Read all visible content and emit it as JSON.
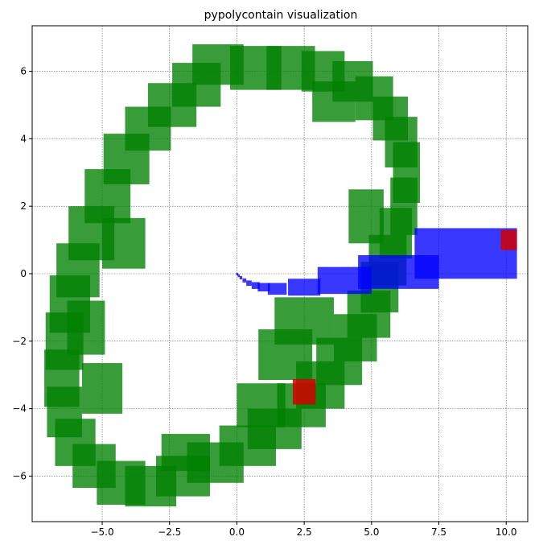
{
  "chart_data": {
    "type": "scatter",
    "title": "pypolycontain visualization",
    "xlabel": "",
    "ylabel": "",
    "xlim": [
      -7.6,
      10.8
    ],
    "ylim": [
      -7.35,
      7.35
    ],
    "xticks": [
      -5.0,
      -2.5,
      0.0,
      2.5,
      5.0,
      7.5,
      10.0
    ],
    "xtick_labels": [
      "−5.0",
      "−2.5",
      "0.0",
      "2.5",
      "5.0",
      "7.5",
      "10.0"
    ],
    "yticks": [
      -6,
      -4,
      -2,
      0,
      2,
      4,
      6
    ],
    "ytick_labels": [
      "−6",
      "−4",
      "−2",
      "0",
      "2",
      "4",
      "6"
    ],
    "grid": true,
    "colors": {
      "green": "#008000",
      "blue": "#0000ff",
      "red": "#d40000",
      "grid": "#555555"
    },
    "series": [
      {
        "color": "green",
        "opacity": 0.78,
        "boxes": [
          [
            -0.7,
            6.2,
            1.9,
            1.2
          ],
          [
            0.7,
            6.1,
            1.9,
            1.3
          ],
          [
            2.0,
            6.1,
            1.8,
            1.3
          ],
          [
            3.2,
            6.0,
            1.6,
            1.2
          ],
          [
            4.3,
            5.7,
            1.5,
            1.2
          ],
          [
            5.1,
            5.2,
            1.4,
            1.3
          ],
          [
            5.7,
            4.6,
            1.3,
            1.3
          ],
          [
            6.1,
            3.9,
            1.2,
            1.5
          ],
          [
            6.3,
            3.0,
            1.0,
            1.8
          ],
          [
            6.2,
            2.0,
            1.0,
            1.7
          ],
          [
            5.9,
            1.2,
            1.2,
            1.5
          ],
          [
            5.6,
            0.4,
            1.4,
            1.5
          ],
          [
            5.3,
            -0.4,
            1.4,
            1.5
          ],
          [
            4.9,
            -1.2,
            1.6,
            1.4
          ],
          [
            4.4,
            -1.9,
            1.6,
            1.4
          ],
          [
            3.8,
            -2.6,
            1.7,
            1.4
          ],
          [
            3.1,
            -3.3,
            1.8,
            1.4
          ],
          [
            2.4,
            -3.9,
            1.8,
            1.3
          ],
          [
            1.4,
            -4.6,
            2.0,
            1.2
          ],
          [
            0.4,
            -5.1,
            2.1,
            1.2
          ],
          [
            -0.8,
            -5.6,
            2.1,
            1.2
          ],
          [
            -2.0,
            -6.0,
            2.0,
            1.2
          ],
          [
            -3.2,
            -6.3,
            1.9,
            1.2
          ],
          [
            -4.3,
            -6.2,
            1.8,
            1.3
          ],
          [
            -5.3,
            -5.7,
            1.6,
            1.3
          ],
          [
            -6.0,
            -5.0,
            1.5,
            1.4
          ],
          [
            -6.4,
            -4.1,
            1.3,
            1.5
          ],
          [
            -6.5,
            -3.1,
            1.3,
            1.7
          ],
          [
            -6.4,
            -2.0,
            1.4,
            1.7
          ],
          [
            -6.2,
            -0.9,
            1.5,
            1.7
          ],
          [
            -5.9,
            0.1,
            1.6,
            1.6
          ],
          [
            -5.4,
            1.2,
            1.7,
            1.6
          ],
          [
            -4.8,
            2.3,
            1.7,
            1.6
          ],
          [
            -4.1,
            3.4,
            1.7,
            1.5
          ],
          [
            -3.3,
            4.3,
            1.7,
            1.3
          ],
          [
            -2.4,
            5.0,
            1.8,
            1.3
          ],
          [
            -1.5,
            5.6,
            1.8,
            1.3
          ],
          [
            2.5,
            -1.4,
            2.2,
            1.4
          ],
          [
            1.8,
            -2.4,
            2.0,
            1.5
          ],
          [
            -5.6,
            -1.6,
            1.4,
            1.6
          ],
          [
            -5.0,
            -3.4,
            1.5,
            1.5
          ],
          [
            -4.2,
            0.9,
            1.6,
            1.5
          ],
          [
            4.8,
            1.7,
            1.3,
            1.6
          ],
          [
            3.6,
            5.1,
            1.6,
            1.2
          ],
          [
            -1.9,
            -5.3,
            1.8,
            1.1
          ],
          [
            0.9,
            -3.9,
            1.8,
            1.3
          ]
        ]
      },
      {
        "color": "blue",
        "opacity": 0.78,
        "boxes": [
          [
            8.5,
            0.6,
            3.8,
            1.5
          ],
          [
            6.0,
            0.05,
            3.0,
            1.0
          ],
          [
            4.0,
            -0.2,
            2.0,
            0.8
          ],
          [
            2.5,
            -0.4,
            1.2,
            0.5
          ],
          [
            1.5,
            -0.45,
            0.7,
            0.35
          ],
          [
            1.0,
            -0.4,
            0.45,
            0.25
          ],
          [
            0.7,
            -0.35,
            0.3,
            0.2
          ],
          [
            0.45,
            -0.28,
            0.2,
            0.16
          ],
          [
            0.28,
            -0.2,
            0.14,
            0.12
          ],
          [
            0.15,
            -0.12,
            0.1,
            0.1
          ],
          [
            0.07,
            -0.06,
            0.08,
            0.08
          ],
          [
            0.02,
            -0.02,
            0.06,
            0.06
          ],
          [
            0.0,
            0.0,
            0.05,
            0.05
          ]
        ]
      },
      {
        "color": "red",
        "opacity": 0.85,
        "boxes": [
          [
            2.5,
            -3.5,
            0.85,
            0.75
          ],
          [
            10.1,
            1.0,
            0.6,
            0.6
          ]
        ]
      }
    ]
  }
}
